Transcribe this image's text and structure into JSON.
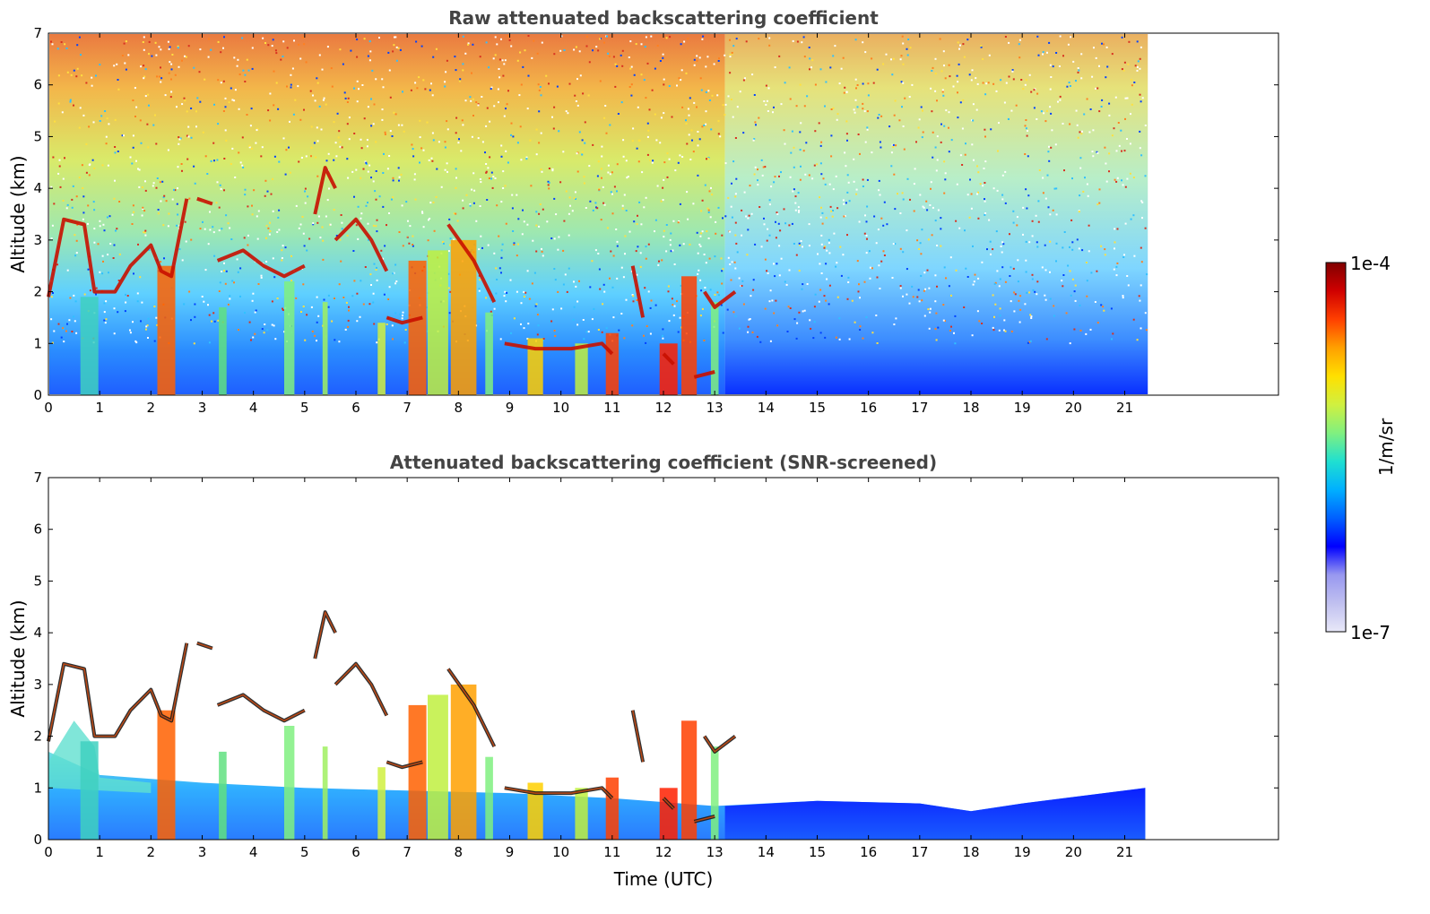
{
  "chart_data": [
    {
      "type": "heatmap",
      "title": "Raw attenuated backscattering coefficient",
      "xlabel": "",
      "ylabel": "Altitude (km)",
      "xlim": [
        0,
        24
      ],
      "ylim": [
        0,
        7
      ],
      "xticks": [
        "0",
        "1",
        "2",
        "3",
        "4",
        "5",
        "6",
        "7",
        "8",
        "9",
        "10",
        "11",
        "12",
        "13",
        "14",
        "15",
        "16",
        "17",
        "18",
        "19",
        "20",
        "21"
      ],
      "yticks": [
        "0",
        "1",
        "2",
        "3",
        "4",
        "5",
        "6",
        "7"
      ],
      "data_extent_x": [
        0,
        21.45
      ],
      "grid": false
    },
    {
      "type": "heatmap",
      "title": "Attenuated backscattering coefficient (SNR-screened)",
      "xlabel": "Time (UTC)",
      "ylabel": "Altitude (km)",
      "xlim": [
        0,
        24
      ],
      "ylim": [
        0,
        7
      ],
      "xticks": [
        "0",
        "1",
        "2",
        "3",
        "4",
        "5",
        "6",
        "7",
        "8",
        "9",
        "10",
        "11",
        "12",
        "13",
        "14",
        "15",
        "16",
        "17",
        "18",
        "19",
        "20",
        "21"
      ],
      "yticks": [
        "0",
        "1",
        "2",
        "3",
        "4",
        "5",
        "6",
        "7"
      ],
      "data_extent_x": [
        0,
        21.45
      ],
      "grid": false
    }
  ],
  "colorbar": {
    "label": "1/m/sr",
    "max_label": "1e-4",
    "min_label": "1e-7",
    "scale": "log",
    "colormap": "jet",
    "colors": [
      "#e8e8f8",
      "#c0c0f0",
      "#9898f0",
      "#0000ff",
      "#0060ff",
      "#00b0ff",
      "#20e0d0",
      "#80f080",
      "#d0f040",
      "#ffe000",
      "#ffa000",
      "#ff4000",
      "#d00000",
      "#800000"
    ]
  }
}
